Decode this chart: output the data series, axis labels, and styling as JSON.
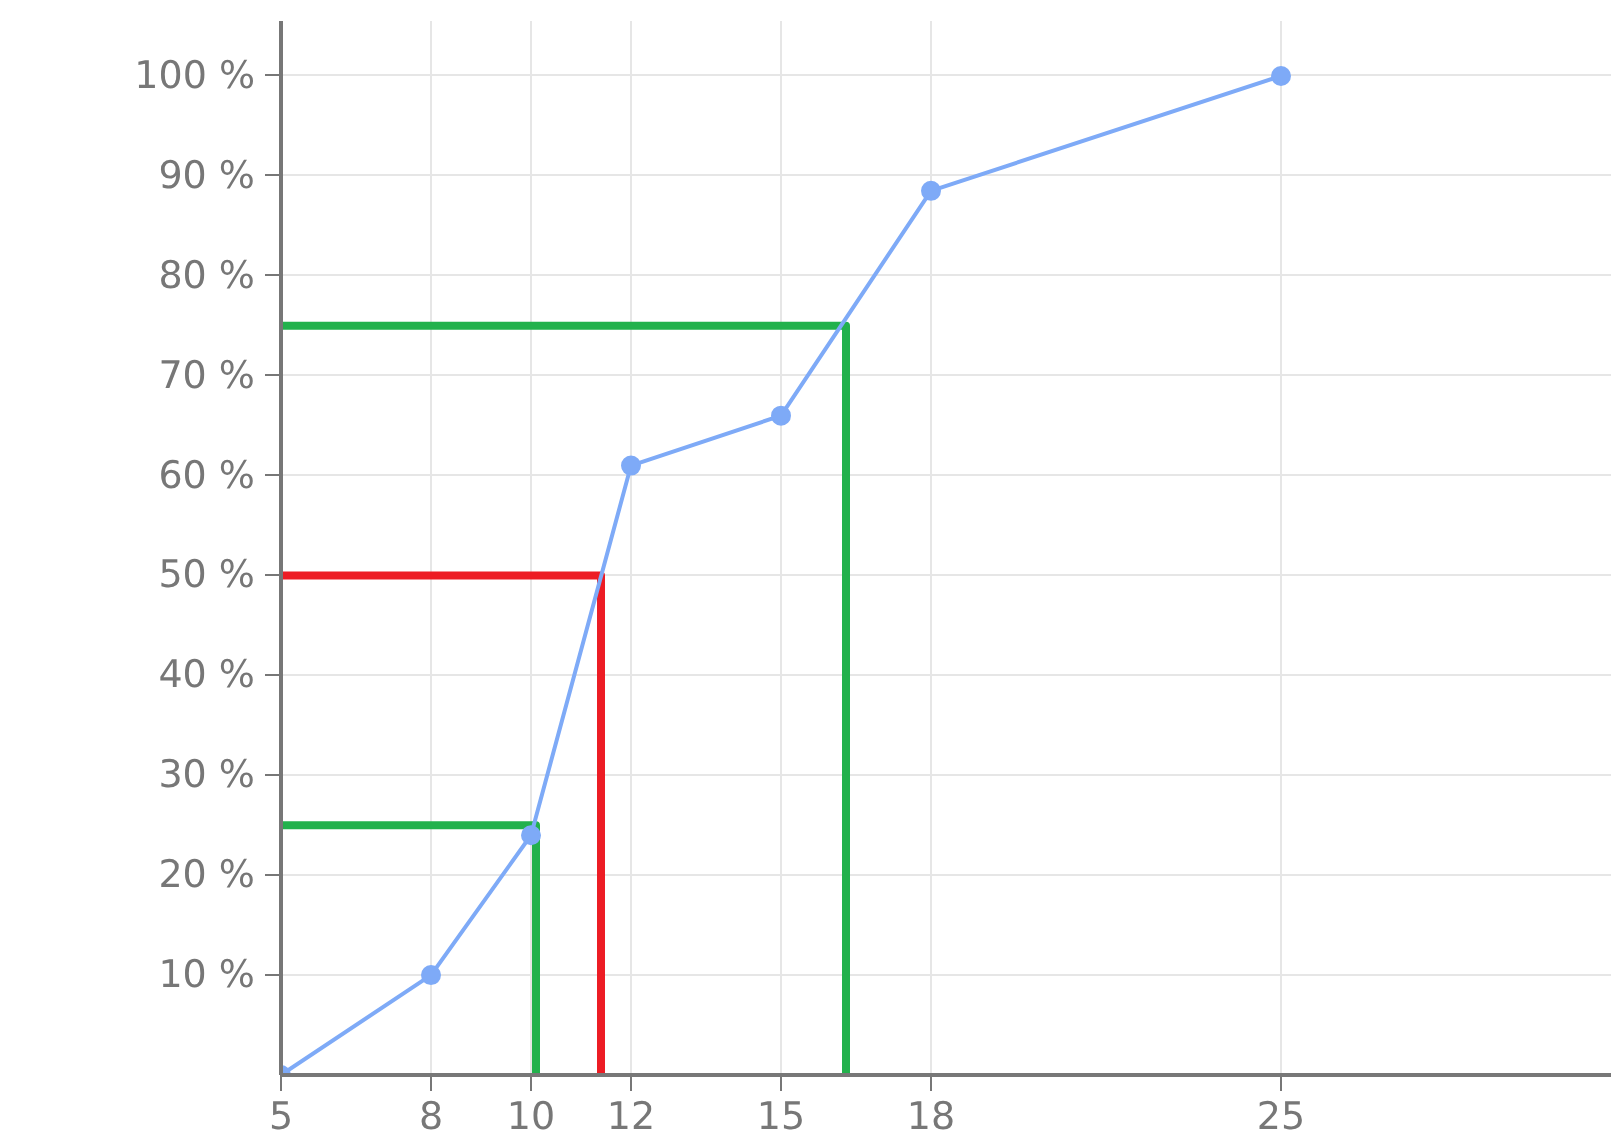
{
  "chart_data": {
    "type": "line",
    "x": [
      5,
      8,
      10,
      12,
      15,
      18,
      25
    ],
    "series": [
      {
        "color": "#7eaaf7",
        "values": [
          0,
          10,
          24,
          61,
          66,
          88.5,
          100
        ],
        "marker": "circle"
      },
      {
        "color": "#22b14c",
        "x": [
          5,
          10.1,
          10.1
        ],
        "values": [
          25,
          25,
          0
        ],
        "marker": "none"
      },
      {
        "color": "#ed1c24",
        "x": [
          5,
          11.4,
          11.4
        ],
        "values": [
          50,
          50,
          0
        ],
        "marker": "none"
      },
      {
        "color": "#22b14c",
        "x": [
          5,
          16.3,
          16.3
        ],
        "values": [
          75,
          75,
          0
        ],
        "marker": "none"
      }
    ],
    "xlim": [
      5,
      31.6
    ],
    "ylim": [
      0,
      105.5
    ],
    "xticks": [
      5,
      8,
      10,
      12,
      15,
      18,
      25
    ],
    "yticks": [
      {
        "value": 10,
        "label": "10 %"
      },
      {
        "value": 20,
        "label": "20 %"
      },
      {
        "value": 30,
        "label": "30 %"
      },
      {
        "value": 40,
        "label": "40 %"
      },
      {
        "value": 50,
        "label": "50 %"
      },
      {
        "value": 60,
        "label": "60 %"
      },
      {
        "value": 70,
        "label": "70 %"
      },
      {
        "value": 80,
        "label": "80 %"
      },
      {
        "value": 90,
        "label": "90 %"
      },
      {
        "value": 100,
        "label": "100 %"
      }
    ],
    "grid": true
  }
}
